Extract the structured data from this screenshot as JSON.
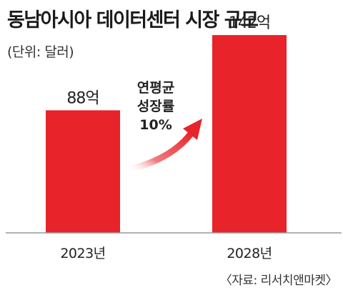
{
  "title": "동남아시아 데이터센터 시장 규모",
  "unit": "(단위: 달러)",
  "source": "〈자료: 리서치앤마켓〉",
  "annotation": {
    "lines": [
      "연평균",
      "성장률",
      "10%"
    ]
  },
  "colors": {
    "bar": "#e8232a",
    "arrow": "#e8232a",
    "axis": "#999999",
    "text": "#222222"
  },
  "chart_data": {
    "type": "bar",
    "categories": [
      "2023년",
      "2028년"
    ],
    "values": [
      88,
      142
    ],
    "data_labels": [
      "88억",
      "142억"
    ],
    "ylim": [
      0,
      160
    ],
    "grid": false
  }
}
